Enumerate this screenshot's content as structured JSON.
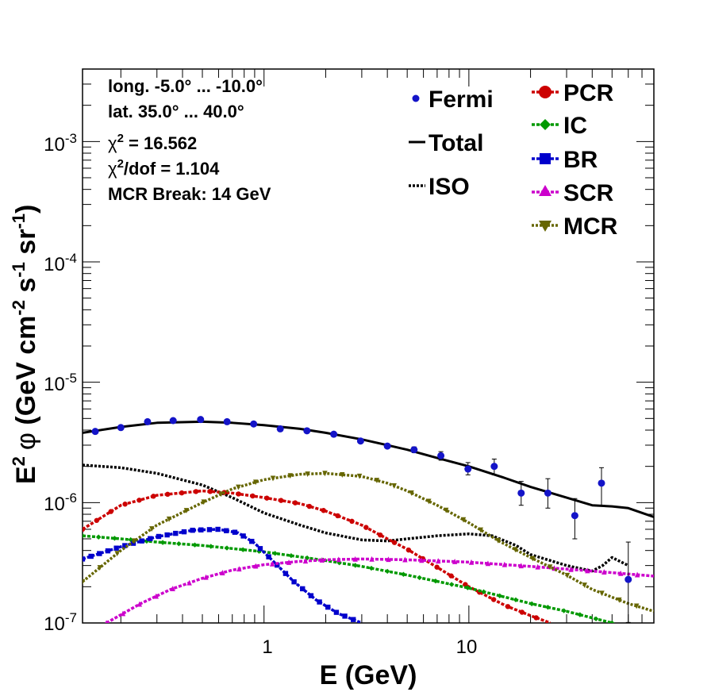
{
  "chart_data": {
    "type": "line",
    "title": "",
    "xlabel": "E (GeV)",
    "ylabel_parts": {
      "prefix": "E",
      "exp": "2",
      "phi": "φ",
      "open": " (GeV cm",
      "exp_cm": "-2",
      "s": " s",
      "exp_s": "-1",
      "sr": " sr",
      "exp_sr": "-1",
      "close": ")"
    },
    "x_scale": "log",
    "y_scale": "log",
    "xlim": [
      0.13,
      80
    ],
    "ylim": [
      1e-07,
      0.004
    ],
    "x_tick_labels": [
      {
        "value": 1,
        "label": "1"
      },
      {
        "value": 10,
        "label": "10"
      }
    ],
    "y_tick_labels": [
      {
        "value": 1e-07,
        "base": "10",
        "exp": "-7"
      },
      {
        "value": 1e-06,
        "base": "10",
        "exp": "-6"
      },
      {
        "value": 1e-05,
        "base": "10",
        "exp": "-5"
      },
      {
        "value": 0.0001,
        "base": "10",
        "exp": "-4"
      },
      {
        "value": 0.001,
        "base": "10",
        "exp": "-3"
      }
    ],
    "stats": {
      "longitude": "long. -5.0° ... -10.0°",
      "latitude": "lat. 35.0° ... 40.0°",
      "chi2_sym": "χ",
      "chi2_exp": "2",
      "chi2_value": " = 16.562",
      "chi2dof_sym": "χ",
      "chi2dof_exp": "2",
      "chi2dof_value": "/dof = 1.104",
      "mcr_break": "MCR Break: 14 GeV"
    },
    "legend": [
      {
        "id": "fermi",
        "label": "Fermi",
        "color": "#1414c8",
        "marker": "circle"
      },
      {
        "id": "total",
        "label": "Total",
        "color": "#000000",
        "marker": "line"
      },
      {
        "id": "iso",
        "label": "ISO",
        "color": "#000000",
        "marker": "dotted"
      },
      {
        "id": "pcr",
        "label": "PCR",
        "color": "#cc0000",
        "marker": "circle"
      },
      {
        "id": "ic",
        "label": "IC",
        "color": "#009900",
        "marker": "diamond"
      },
      {
        "id": "br",
        "label": "BR",
        "color": "#0000cc",
        "marker": "square"
      },
      {
        "id": "scr",
        "label": "SCR",
        "color": "#cc00cc",
        "marker": "triangle-up"
      },
      {
        "id": "mcr",
        "label": "MCR",
        "color": "#666600",
        "marker": "triangle-down"
      }
    ],
    "fermi_points": [
      {
        "x": 0.15,
        "y": 3.9e-06,
        "err_lo": 0,
        "err_hi": 0
      },
      {
        "x": 0.2,
        "y": 4.2e-06,
        "err_lo": 0,
        "err_hi": 0
      },
      {
        "x": 0.27,
        "y": 4.7e-06,
        "err_lo": 0,
        "err_hi": 0
      },
      {
        "x": 0.36,
        "y": 4.8e-06,
        "err_lo": 0,
        "err_hi": 0
      },
      {
        "x": 0.49,
        "y": 4.9e-06,
        "err_lo": 0,
        "err_hi": 0
      },
      {
        "x": 0.66,
        "y": 4.7e-06,
        "err_lo": 0,
        "err_hi": 0
      },
      {
        "x": 0.89,
        "y": 4.5e-06,
        "err_lo": 0,
        "err_hi": 0
      },
      {
        "x": 1.2,
        "y": 4.1e-06,
        "err_lo": 0,
        "err_hi": 0
      },
      {
        "x": 1.62,
        "y": 3.95e-06,
        "err_lo": 0,
        "err_hi": 0
      },
      {
        "x": 2.19,
        "y": 3.7e-06,
        "err_lo": 0,
        "err_hi": 0
      },
      {
        "x": 2.96,
        "y": 3.25e-06,
        "err_lo": 0,
        "err_hi": 0
      },
      {
        "x": 4.0,
        "y": 2.95e-06,
        "err_lo": 1e-07,
        "err_hi": 1e-07
      },
      {
        "x": 5.4,
        "y": 2.75e-06,
        "err_lo": 1.5e-07,
        "err_hi": 1.5e-07
      },
      {
        "x": 7.3,
        "y": 2.45e-06,
        "err_lo": 2e-07,
        "err_hi": 2e-07
      },
      {
        "x": 9.9,
        "y": 1.9e-06,
        "err_lo": 2e-07,
        "err_hi": 2.5e-07
      },
      {
        "x": 13.3,
        "y": 2e-06,
        "err_lo": 3e-07,
        "err_hi": 3e-07
      },
      {
        "x": 18.0,
        "y": 1.2e-06,
        "err_lo": 2.5e-07,
        "err_hi": 3e-07
      },
      {
        "x": 24.3,
        "y": 1.2e-06,
        "err_lo": 3e-07,
        "err_hi": 3.8e-07
      },
      {
        "x": 32.9,
        "y": 7.8e-07,
        "err_lo": 2.8e-07,
        "err_hi": 3e-07
      },
      {
        "x": 44.4,
        "y": 1.45e-06,
        "err_lo": 5e-07,
        "err_hi": 5e-07
      },
      {
        "x": 60.0,
        "y": 2.3e-07,
        "err_lo": 1.3e-07,
        "err_hi": 2.4e-07
      }
    ],
    "series": [
      {
        "id": "total",
        "name": "Total",
        "style": "solid",
        "color": "#000000",
        "marker": "none",
        "x": [
          0.13,
          0.2,
          0.3,
          0.5,
          0.7,
          1.0,
          1.5,
          2.0,
          3.0,
          4.0,
          5.0,
          7.0,
          10.0,
          15.0,
          20.0,
          30.0,
          40.0,
          50.0,
          60.0,
          80.0
        ],
        "y": [
          3.8e-06,
          4.25e-06,
          4.6e-06,
          4.7e-06,
          4.6e-06,
          4.4e-06,
          4.1e-06,
          3.8e-06,
          3.35e-06,
          3e-06,
          2.75e-06,
          2.35e-06,
          2e-06,
          1.6e-06,
          1.35e-06,
          1.1e-06,
          9.5e-07,
          9.3e-07,
          9e-07,
          7.6e-07
        ]
      },
      {
        "id": "iso",
        "name": "ISO",
        "style": "dotted",
        "color": "#000000",
        "marker": "none",
        "x": [
          0.13,
          0.2,
          0.3,
          0.5,
          0.7,
          1.0,
          1.5,
          2.0,
          3.0,
          4.0,
          5.0,
          7.0,
          10.0,
          13.0,
          17.0,
          20.0,
          30.0,
          40.0,
          45.0,
          50.0,
          60.0
        ],
        "y": [
          2.05e-06,
          1.95e-06,
          1.75e-06,
          1.4e-06,
          1.1e-06,
          8.2e-07,
          6.5e-07,
          5.6e-07,
          4.9e-07,
          4.8e-07,
          5e-07,
          5.3e-07,
          5.5e-07,
          5.3e-07,
          4.4e-07,
          3.7e-07,
          3e-07,
          2.7e-07,
          3e-07,
          3.5e-07,
          3e-07
        ]
      },
      {
        "id": "pcr",
        "name": "PCR",
        "style": "dashed",
        "color": "#cc0000",
        "marker": "circle",
        "x": [
          0.13,
          0.2,
          0.3,
          0.5,
          0.7,
          1.0,
          1.5,
          2.0,
          3.0,
          4.0,
          5.0,
          7.0,
          10.0,
          15.0,
          20.0,
          25.0
        ],
        "y": [
          6e-07,
          9.5e-07,
          1.15e-06,
          1.25e-06,
          1.2e-06,
          1.1e-06,
          9.8e-07,
          8.5e-07,
          6.5e-07,
          5e-07,
          4.1e-07,
          2.9e-07,
          2e-07,
          1.4e-07,
          1.15e-07,
          1e-07
        ]
      },
      {
        "id": "ic",
        "name": "IC",
        "style": "dashed",
        "color": "#009900",
        "marker": "diamond",
        "x": [
          0.13,
          0.2,
          0.3,
          0.5,
          1.0,
          2.0,
          3.0,
          5.0,
          10.0,
          20.0,
          30.0,
          50.0
        ],
        "y": [
          5.3e-07,
          5e-07,
          4.7e-07,
          4.4e-07,
          3.9e-07,
          3.3e-07,
          2.95e-07,
          2.5e-07,
          1.95e-07,
          1.45e-07,
          1.25e-07,
          1e-07
        ]
      },
      {
        "id": "br",
        "name": "BR",
        "style": "dashed",
        "color": "#0000cc",
        "marker": "square",
        "x": [
          0.13,
          0.2,
          0.3,
          0.45,
          0.6,
          0.75,
          0.9,
          1.1,
          1.4,
          1.8,
          2.3,
          3.0
        ],
        "y": [
          3.4e-07,
          4.3e-07,
          5.2e-07,
          5.9e-07,
          6e-07,
          5.6e-07,
          4.6e-07,
          3.3e-07,
          2.2e-07,
          1.55e-07,
          1.2e-07,
          1e-07
        ]
      },
      {
        "id": "scr",
        "name": "SCR",
        "style": "dashed",
        "color": "#cc00cc",
        "marker": "triangle-up",
        "x": [
          0.17,
          0.25,
          0.35,
          0.5,
          0.7,
          1.0,
          1.5,
          2.0,
          3.0,
          5.0,
          10.0,
          20.0,
          40.0,
          80.0
        ],
        "y": [
          1e-07,
          1.45e-07,
          1.9e-07,
          2.35e-07,
          2.75e-07,
          3.05e-07,
          3.25e-07,
          3.35e-07,
          3.4e-07,
          3.35e-07,
          3.2e-07,
          2.95e-07,
          2.7e-07,
          2.45e-07
        ]
      },
      {
        "id": "mcr",
        "name": "MCR",
        "style": "dotted",
        "color": "#666600",
        "marker": "triangle-down",
        "x": [
          0.13,
          0.2,
          0.3,
          0.5,
          0.7,
          1.0,
          1.5,
          2.0,
          3.0,
          4.0,
          5.0,
          7.0,
          10.0,
          14.0,
          20.0,
          30.0,
          40.0,
          60.0,
          80.0
        ],
        "y": [
          2.2e-07,
          4e-07,
          6.5e-07,
          1e-06,
          1.3e-06,
          1.55e-06,
          1.72e-06,
          1.75e-06,
          1.65e-06,
          1.45e-06,
          1.25e-06,
          9.5e-07,
          6.8e-07,
          4.8e-07,
          3.5e-07,
          2.5e-07,
          1.9e-07,
          1.45e-07,
          1.25e-07
        ]
      }
    ]
  }
}
